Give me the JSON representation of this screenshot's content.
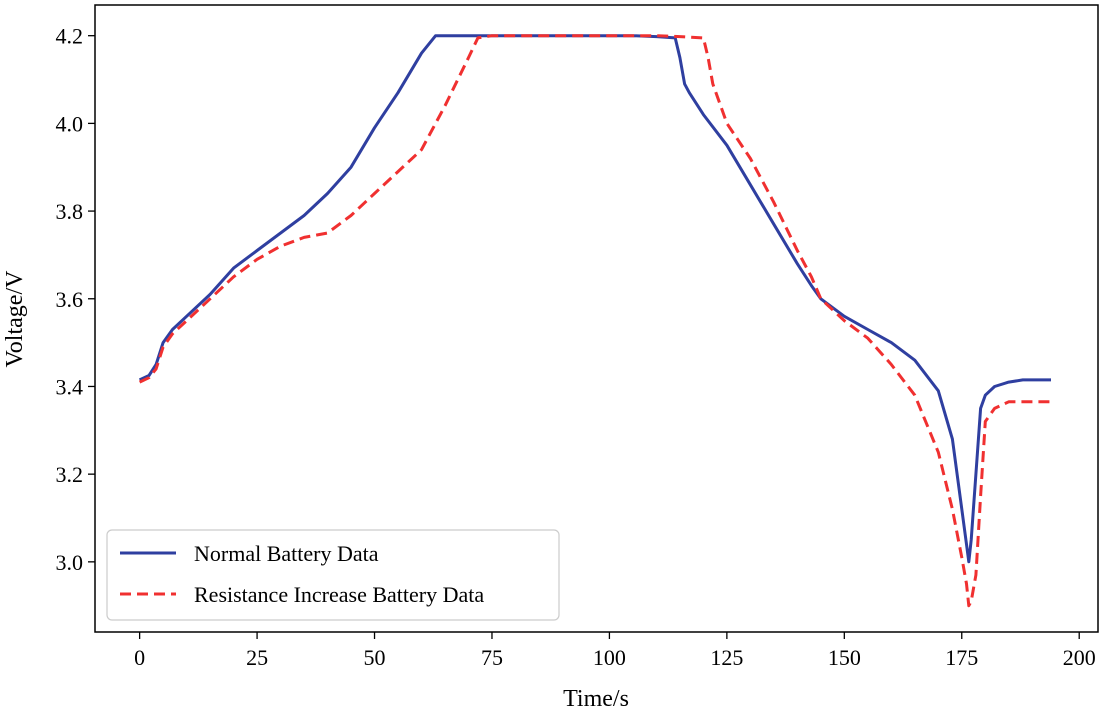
{
  "chart_data": {
    "type": "line",
    "title": "",
    "xlabel": "Time/s",
    "ylabel": "Voltage/V",
    "xlim": [
      -9.5,
      204
    ],
    "ylim": [
      2.84,
      4.27
    ],
    "xticks": [
      0,
      25,
      50,
      75,
      100,
      125,
      150,
      175,
      200
    ],
    "yticks": [
      3.0,
      3.2,
      3.4,
      3.6,
      3.8,
      4.0,
      4.2
    ],
    "xtick_labels": [
      "0",
      "25",
      "50",
      "75",
      "100",
      "125",
      "150",
      "175",
      "200"
    ],
    "ytick_labels": [
      "3.0",
      "3.2",
      "3.4",
      "3.6",
      "3.8",
      "4.0",
      "4.2"
    ],
    "grid": false,
    "legend_position": "bottom-left",
    "series": [
      {
        "name": "Normal Battery Data",
        "color": "#2f3fa0",
        "style": "solid",
        "x": [
          0,
          2,
          3.5,
          5,
          7,
          10,
          15,
          20,
          25,
          30,
          35,
          40,
          45,
          50,
          55,
          60,
          63,
          64,
          70,
          80,
          90,
          100,
          105,
          110,
          114,
          115,
          116,
          117,
          120,
          125,
          130,
          135,
          140,
          143,
          145,
          150,
          155,
          160,
          165,
          170,
          173,
          175,
          176,
          176.5,
          177,
          178,
          179,
          180,
          182,
          185,
          188,
          190,
          194
        ],
        "y": [
          3.415,
          3.425,
          3.45,
          3.5,
          3.53,
          3.56,
          3.61,
          3.67,
          3.71,
          3.75,
          3.79,
          3.84,
          3.9,
          3.99,
          4.07,
          4.16,
          4.2,
          4.2,
          4.2,
          4.2,
          4.2,
          4.2,
          4.2,
          4.198,
          4.195,
          4.15,
          4.09,
          4.07,
          4.02,
          3.95,
          3.86,
          3.77,
          3.68,
          3.63,
          3.6,
          3.56,
          3.53,
          3.5,
          3.46,
          3.39,
          3.28,
          3.12,
          3.04,
          3.0,
          3.05,
          3.2,
          3.35,
          3.38,
          3.4,
          3.41,
          3.415,
          3.415,
          3.415
        ]
      },
      {
        "name": "Resistance Increase Battery Data",
        "color": "#f03030",
        "style": "dashed",
        "x": [
          0,
          2,
          3.5,
          5,
          7,
          10,
          15,
          20,
          25,
          30,
          35,
          40,
          45,
          50,
          55,
          60,
          65,
          70,
          72,
          75,
          80,
          90,
          100,
          110,
          115,
          120,
          121,
          122,
          125,
          130,
          135,
          140,
          143,
          145,
          150,
          155,
          160,
          165,
          170,
          173,
          175,
          176,
          176.5,
          177,
          178,
          179,
          180,
          182,
          185,
          190,
          194
        ],
        "y": [
          3.41,
          3.42,
          3.44,
          3.49,
          3.52,
          3.55,
          3.6,
          3.65,
          3.69,
          3.72,
          3.74,
          3.75,
          3.79,
          3.84,
          3.89,
          3.94,
          4.04,
          4.15,
          4.195,
          4.2,
          4.2,
          4.2,
          4.2,
          4.2,
          4.198,
          4.195,
          4.15,
          4.09,
          4.0,
          3.92,
          3.82,
          3.71,
          3.65,
          3.6,
          3.55,
          3.51,
          3.45,
          3.38,
          3.25,
          3.12,
          3.01,
          2.95,
          2.9,
          2.91,
          2.97,
          3.15,
          3.32,
          3.35,
          3.365,
          3.365,
          3.365
        ]
      }
    ]
  }
}
